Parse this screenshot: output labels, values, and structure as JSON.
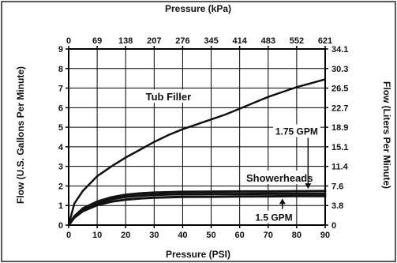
{
  "chart_data": {
    "type": "line",
    "title": "",
    "xlabel": "Pressure (PSI)",
    "x2label": "Pressure (kPa)",
    "ylabel": "Flow (U.S. Gallons Per Minute)",
    "y2label": "Flow (Liters Per Minute)",
    "xlim": [
      0,
      90
    ],
    "ylim": [
      0,
      9
    ],
    "x_ticks": [
      "0",
      "10",
      "20",
      "30",
      "40",
      "50",
      "60",
      "70",
      "80",
      "90"
    ],
    "x2_ticks": [
      "0",
      "69",
      "138",
      "207",
      "276",
      "345",
      "414",
      "483",
      "552",
      "621"
    ],
    "y_ticks": [
      "0",
      "1",
      "2",
      "3",
      "4",
      "5",
      "6",
      "7",
      "8",
      "9"
    ],
    "y2_ticks": [
      "0",
      "3.8",
      "7.6",
      "11.4",
      "15.1",
      "18.9",
      "22.7",
      "26.5",
      "30.3",
      "34.1"
    ],
    "grid": true,
    "series": [
      {
        "name": "Tub Filler",
        "x": [
          0,
          2,
          5,
          10,
          15,
          20,
          25,
          30,
          35,
          40,
          45,
          50,
          55,
          60,
          65,
          70,
          75,
          80,
          85,
          90
        ],
        "y": [
          0,
          1.1,
          1.75,
          2.5,
          3.0,
          3.45,
          3.85,
          4.25,
          4.6,
          4.9,
          5.15,
          5.4,
          5.65,
          5.95,
          6.25,
          6.55,
          6.8,
          7.05,
          7.25,
          7.45
        ]
      },
      {
        "name": "",
        "x": [
          0,
          2,
          5,
          10,
          15,
          20,
          25,
          30,
          35,
          40,
          50,
          60,
          70,
          80,
          90
        ],
        "y": [
          0,
          0.45,
          0.85,
          1.2,
          1.42,
          1.55,
          1.62,
          1.66,
          1.68,
          1.7,
          1.71,
          1.72,
          1.72,
          1.73,
          1.74
        ]
      },
      {
        "name": "",
        "x": [
          0,
          2,
          5,
          10,
          15,
          20,
          25,
          30,
          35,
          40,
          50,
          60,
          70,
          80,
          90
        ],
        "y": [
          0,
          0.42,
          0.78,
          1.12,
          1.32,
          1.44,
          1.5,
          1.54,
          1.56,
          1.58,
          1.59,
          1.59,
          1.6,
          1.6,
          1.6
        ]
      },
      {
        "name": "",
        "x": [
          0,
          2,
          5,
          10,
          15,
          20,
          25,
          30,
          35,
          40,
          50,
          60,
          70,
          80,
          90
        ],
        "y": [
          0,
          0.38,
          0.72,
          1.02,
          1.2,
          1.3,
          1.36,
          1.4,
          1.42,
          1.44,
          1.45,
          1.46,
          1.47,
          1.48,
          1.48
        ]
      }
    ],
    "annotations": [
      {
        "text": "Tub Filler",
        "x": 35,
        "y": 6.45
      },
      {
        "text": "Showerheads",
        "x": 74,
        "y": 2.3
      },
      {
        "text": "1.75 GPM",
        "x": 80,
        "y": 4.7,
        "arrow_to": {
          "x": 84,
          "y": 1.73
        }
      },
      {
        "text": "1.5 GPM",
        "x": 72,
        "y": 0.3,
        "arrow_to": {
          "x": 75,
          "y": 1.48
        }
      }
    ]
  }
}
